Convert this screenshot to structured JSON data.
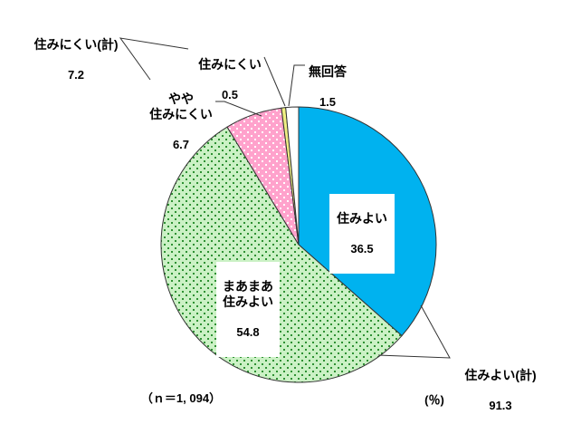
{
  "chart_data": {
    "type": "pie",
    "direction": "clockwise",
    "start_angle_deg": 0,
    "sample_label": "（ｎ＝1, 094）",
    "unit_label": "(％)",
    "slices": [
      {
        "id": "livable",
        "label": "住みよい",
        "value": 36.5,
        "fill": "#00B2EF",
        "pattern": null
      },
      {
        "id": "somewhat-livable",
        "label": "まあまあ\n住みよい",
        "value": 54.8,
        "fill": "#CBF1C5",
        "pattern": {
          "dot": "#2E9133",
          "tile": 8,
          "dot_size": 2
        }
      },
      {
        "id": "somewhat-unlivable",
        "label": "やや\n住みにくい",
        "value": 6.7,
        "fill": "#FFA2CC",
        "pattern": {
          "dot": "#FFFFFF",
          "tile": 8,
          "dot_size": 2
        }
      },
      {
        "id": "unlivable",
        "label": "住みにくい",
        "value": 0.5,
        "fill": "#EFEF83",
        "pattern": null
      },
      {
        "id": "no-answer",
        "label": "無回答",
        "value": 1.5,
        "fill": "#FFFFFF",
        "pattern": null
      }
    ],
    "totals": [
      {
        "id": "livable-total",
        "label": "住みよい(計)",
        "value": 91.3
      },
      {
        "id": "unlivable-total",
        "label": "住みにくい(計)",
        "value": 7.2
      }
    ],
    "outline_color": "#333333"
  }
}
